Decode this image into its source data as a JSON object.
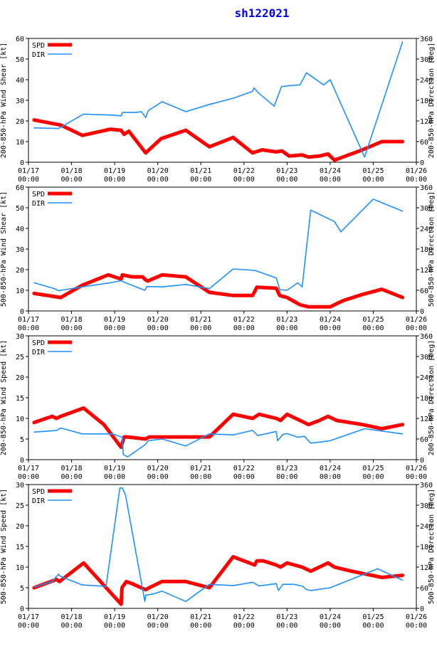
{
  "title": "sh122021",
  "colors": {
    "title": "#0000ff",
    "spd": "#ff0000",
    "dir": "#1e90ff",
    "axis": "#000000",
    "background": "#ffffff"
  },
  "x_tick_labels": [
    {
      "date": "01/17",
      "time": "00:00"
    },
    {
      "date": "01/18",
      "time": "00:00"
    },
    {
      "date": "01/19",
      "time": "00:00"
    },
    {
      "date": "01/20",
      "time": "00:00"
    },
    {
      "date": "01/21",
      "time": "00:00"
    },
    {
      "date": "01/22",
      "time": "00:00"
    },
    {
      "date": "01/23",
      "time": "00:00"
    },
    {
      "date": "01/24",
      "time": "00:00"
    },
    {
      "date": "01/25",
      "time": "00:00"
    },
    {
      "date": "01/26",
      "time": "00:00"
    }
  ],
  "chart_data": [
    {
      "type": "line",
      "ylabel_left": "200-850-hPa Wind Shear [kt]",
      "ylabel_right": "200-850-hPa Direction [Deg]",
      "ylim_left": [
        0,
        60
      ],
      "yticks_left": [
        0,
        10,
        20,
        30,
        40,
        50,
        60
      ],
      "ylim_right": [
        0,
        360
      ],
      "yticks_right": [
        0,
        60,
        120,
        180,
        240,
        300,
        360
      ],
      "xlim": [
        0,
        9
      ],
      "legend": [
        "SPD",
        "DIR"
      ],
      "series": [
        {
          "name": "SPD",
          "axis": "left",
          "x": [
            0.13,
            0.75,
            1.25,
            1.9,
            2.15,
            2.22,
            2.33,
            2.72,
            3.08,
            3.65,
            4.2,
            4.75,
            5.2,
            5.42,
            5.75,
            5.88,
            6.05,
            6.35,
            6.5,
            6.75,
            6.95,
            7.1,
            7.23,
            7.75,
            8.2,
            8.68
          ],
          "values": [
            20.5,
            18,
            13,
            16,
            15.5,
            13.5,
            15,
            4.5,
            11.5,
            15.5,
            7.5,
            12,
            4.5,
            6,
            5,
            5.5,
            3,
            3.5,
            2.5,
            3,
            4,
            1,
            2,
            6,
            10,
            10
          ]
        },
        {
          "name": "DIR",
          "axis": "right",
          "x": [
            0.13,
            0.7,
            1.28,
            1.95,
            2.15,
            2.18,
            2.5,
            2.62,
            2.72,
            2.78,
            3.1,
            3.65,
            4.2,
            4.75,
            5.2,
            5.23,
            5.35,
            5.7,
            5.87,
            6.0,
            6.3,
            6.45,
            6.85,
            7.0,
            7.8,
            8.68
          ],
          "values": [
            100,
            98,
            140,
            137,
            135,
            145,
            145,
            147,
            130,
            150,
            176,
            147,
            168,
            186,
            206,
            216,
            200,
            163,
            220,
            222,
            225,
            260,
            225,
            240,
            15,
            350
          ]
        }
      ]
    },
    {
      "type": "line",
      "ylabel_left": "500-850-hPa Wind Shear [kt]",
      "ylabel_right": "500-850-hPa Direction [Deg]",
      "ylim_left": [
        0,
        60
      ],
      "yticks_left": [
        0,
        10,
        20,
        30,
        40,
        50,
        60
      ],
      "ylim_right": [
        0,
        360
      ],
      "yticks_right": [
        0,
        60,
        120,
        180,
        240,
        300,
        360
      ],
      "xlim": [
        0,
        9
      ],
      "legend": [
        "SPD",
        "DIR"
      ],
      "series": [
        {
          "name": "SPD",
          "axis": "left",
          "x": [
            0.13,
            0.75,
            1.25,
            1.85,
            2.15,
            2.18,
            2.4,
            2.65,
            2.72,
            2.77,
            3.1,
            3.65,
            4.2,
            4.75,
            5.2,
            5.3,
            5.75,
            5.83,
            6.0,
            6.3,
            6.5,
            7.0,
            7.3,
            7.75,
            8.2,
            8.68
          ],
          "values": [
            8.5,
            6.5,
            12.5,
            17.5,
            15.5,
            17.5,
            16.5,
            16.5,
            15,
            14.5,
            17.5,
            16.5,
            9,
            7.5,
            7.5,
            11.5,
            11,
            7.5,
            6.5,
            3,
            2,
            2,
            5,
            8,
            10.5,
            6.5
          ]
        },
        {
          "name": "DIR",
          "axis": "right",
          "x": [
            0.13,
            0.6,
            0.7,
            1.3,
            1.9,
            2.15,
            2.25,
            2.5,
            2.7,
            2.75,
            3.1,
            3.65,
            4.2,
            4.75,
            5.25,
            5.75,
            5.83,
            6.0,
            6.25,
            6.35,
            6.55,
            7.1,
            7.25,
            8.0,
            8.68
          ],
          "values": [
            82,
            65,
            59,
            71,
            82,
            88,
            82,
            70,
            60,
            71,
            70,
            77,
            65,
            122,
            118,
            96,
            62,
            60,
            82,
            70,
            293,
            260,
            230,
            325,
            290
          ]
        }
      ]
    },
    {
      "type": "line",
      "ylabel_left": "200-850-hPa Wind Speed [kt]",
      "ylabel_right": "200-850-hPa Direction [Deg]",
      "ylim_left": [
        0,
        30
      ],
      "yticks_left": [
        0,
        5,
        10,
        15,
        20,
        25,
        30
      ],
      "ylim_right": [
        0,
        360
      ],
      "yticks_right": [
        0,
        60,
        120,
        180,
        240,
        300,
        360
      ],
      "xlim": [
        0,
        9
      ],
      "legend": [
        "SPD",
        "DIR"
      ],
      "series": [
        {
          "name": "SPD",
          "axis": "left",
          "x": [
            0.13,
            0.55,
            0.65,
            0.75,
            1.28,
            1.75,
            2.15,
            2.22,
            2.3,
            2.72,
            2.8,
            3.1,
            3.65,
            4.2,
            4.75,
            5.2,
            5.35,
            5.75,
            5.85,
            6.0,
            6.3,
            6.5,
            6.75,
            6.95,
            7.15,
            7.75,
            8.2,
            8.68
          ],
          "values": [
            9,
            10.5,
            10,
            10.5,
            12.5,
            8.5,
            3,
            5.5,
            5.5,
            5,
            5.5,
            5.5,
            5.5,
            5.5,
            11,
            10,
            11,
            10,
            9.5,
            11,
            9.5,
            8.5,
            9.5,
            10.5,
            9.5,
            8.5,
            7.5,
            8.5
          ]
        },
        {
          "name": "DIR",
          "axis": "right",
          "x": [
            0.13,
            0.65,
            0.75,
            1.25,
            1.95,
            2.18,
            2.2,
            2.3,
            2.55,
            2.72,
            2.78,
            3.1,
            3.65,
            4.2,
            4.75,
            5.2,
            5.32,
            5.75,
            5.78,
            5.9,
            6.0,
            6.25,
            6.4,
            6.55,
            7.0,
            7.8,
            8.68
          ],
          "values": [
            80,
            85,
            92,
            75,
            75,
            65,
            15,
            8,
            30,
            45,
            55,
            60,
            40,
            75,
            72,
            85,
            70,
            82,
            55,
            73,
            76,
            65,
            68,
            48,
            55,
            90,
            75
          ]
        }
      ]
    },
    {
      "type": "line",
      "ylabel_left": "500-850-hPa Wind Speed [kt]",
      "ylabel_right": "500-850-hPa Direction [Deg]",
      "ylim_left": [
        0,
        30
      ],
      "yticks_left": [
        0,
        5,
        10,
        15,
        20,
        25,
        30
      ],
      "ylim_right": [
        0,
        360
      ],
      "yticks_right": [
        0,
        60,
        120,
        180,
        240,
        300,
        360
      ],
      "xlim": [
        0,
        9
      ],
      "legend": [
        "SPD",
        "DIR"
      ],
      "series": [
        {
          "name": "SPD",
          "axis": "left",
          "x": [
            0.13,
            0.65,
            0.72,
            1.28,
            2.15,
            2.17,
            2.27,
            2.4,
            2.72,
            2.8,
            3.1,
            3.65,
            4.2,
            4.75,
            5.25,
            5.3,
            5.45,
            5.75,
            5.85,
            6.0,
            6.35,
            6.55,
            6.95,
            7.1,
            7.5,
            8.2,
            8.68
          ],
          "values": [
            5,
            7,
            6.5,
            11,
            1,
            5,
            6.5,
            6,
            4.5,
            5,
            6.5,
            6.5,
            5,
            12.5,
            10.5,
            11.5,
            11.5,
            10.5,
            10,
            11,
            10,
            9,
            11,
            10,
            9,
            7.5,
            8
          ]
        },
        {
          "name": "DIR",
          "axis": "right",
          "x": [
            0.13,
            0.55,
            0.7,
            0.72,
            0.9,
            1.25,
            1.8,
            2.12,
            2.18,
            2.25,
            2.7,
            2.72,
            2.9,
            3.1,
            3.65,
            4.2,
            4.75,
            5.2,
            5.35,
            5.75,
            5.8,
            5.9,
            6.15,
            6.35,
            6.45,
            6.55,
            7.0,
            8.1,
            8.68
          ],
          "values": [
            62,
            78,
            100,
            95,
            85,
            68,
            64,
            350,
            350,
            330,
            20,
            38,
            42,
            50,
            20,
            70,
            66,
            76,
            65,
            72,
            52,
            70,
            70,
            65,
            55,
            52,
            60,
            115,
            82
          ]
        }
      ]
    }
  ]
}
